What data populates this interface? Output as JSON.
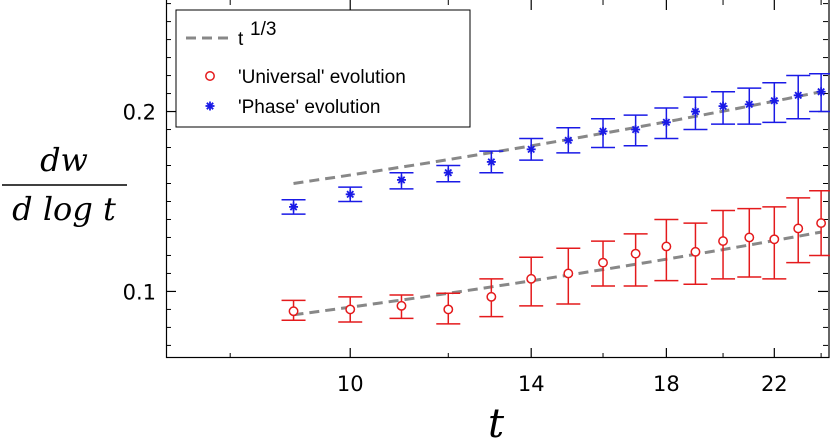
{
  "chart_data": {
    "type": "scatter",
    "title": "",
    "xlabel": "t",
    "ylabel_numerator": "dw",
    "ylabel_denominator": "d log t",
    "xlim": [
      7.1,
      24.4
    ],
    "ylim": [
      0.063,
      0.262
    ],
    "x_scale": "log",
    "xticks": [
      10,
      14,
      18,
      22
    ],
    "xtick_labels": [
      "10",
      "14",
      "18",
      "22"
    ],
    "yticks": [
      0.1,
      0.2
    ],
    "ytick_labels": [
      "0.1",
      "0.2"
    ],
    "grid": false,
    "legend_position": "top-left",
    "x": [
      9,
      10,
      11,
      12,
      13,
      14,
      15,
      16,
      17,
      18,
      19,
      20,
      21,
      22,
      23,
      24
    ],
    "series": [
      {
        "name": "'Universal' evolution",
        "marker": "open-circle",
        "color": "#e41a1c",
        "values": [
          0.089,
          0.09,
          0.092,
          0.09,
          0.097,
          0.107,
          0.11,
          0.116,
          0.121,
          0.125,
          0.122,
          0.128,
          0.13,
          0.129,
          0.135,
          0.138
        ],
        "err_low": [
          0.084,
          0.083,
          0.085,
          0.082,
          0.086,
          0.092,
          0.093,
          0.103,
          0.103,
          0.106,
          0.104,
          0.107,
          0.108,
          0.107,
          0.116,
          0.12
        ],
        "err_high": [
          0.095,
          0.097,
          0.098,
          0.099,
          0.107,
          0.119,
          0.124,
          0.128,
          0.132,
          0.14,
          0.138,
          0.145,
          0.146,
          0.147,
          0.152,
          0.156
        ]
      },
      {
        "name": "'Phase' evolution",
        "marker": "asterisk",
        "color": "#1a1ae6",
        "values": [
          0.147,
          0.154,
          0.162,
          0.166,
          0.172,
          0.179,
          0.184,
          0.189,
          0.19,
          0.194,
          0.2,
          0.203,
          0.204,
          0.206,
          0.209,
          0.211
        ],
        "err_low": [
          0.143,
          0.15,
          0.157,
          0.161,
          0.166,
          0.173,
          0.177,
          0.18,
          0.181,
          0.185,
          0.19,
          0.193,
          0.193,
          0.194,
          0.196,
          0.2
        ],
        "err_high": [
          0.151,
          0.158,
          0.166,
          0.17,
          0.178,
          0.185,
          0.191,
          0.196,
          0.198,
          0.202,
          0.208,
          0.211,
          0.213,
          0.216,
          0.22,
          0.221
        ]
      }
    ],
    "fit_lines": [
      {
        "name": "t^(1/3)",
        "style": "dashed",
        "color": "#888888",
        "x_range": [
          9,
          24
        ],
        "y_range": [
          0.16,
          0.211
        ]
      },
      {
        "name": "t^(1/3)",
        "style": "dashed",
        "color": "#888888",
        "x_range": [
          9,
          24
        ],
        "y_range": [
          0.087,
          0.133
        ]
      }
    ],
    "legend": {
      "entries": [
        {
          "label_base": "t",
          "label_sup": "1/3",
          "kind": "dashed-line",
          "color": "#888888"
        },
        {
          "label": "'Universal' evolution",
          "kind": "open-circle",
          "color": "#e41a1c"
        },
        {
          "label": "'Phase' evolution",
          "kind": "asterisk",
          "color": "#1a1ae6"
        }
      ]
    }
  }
}
